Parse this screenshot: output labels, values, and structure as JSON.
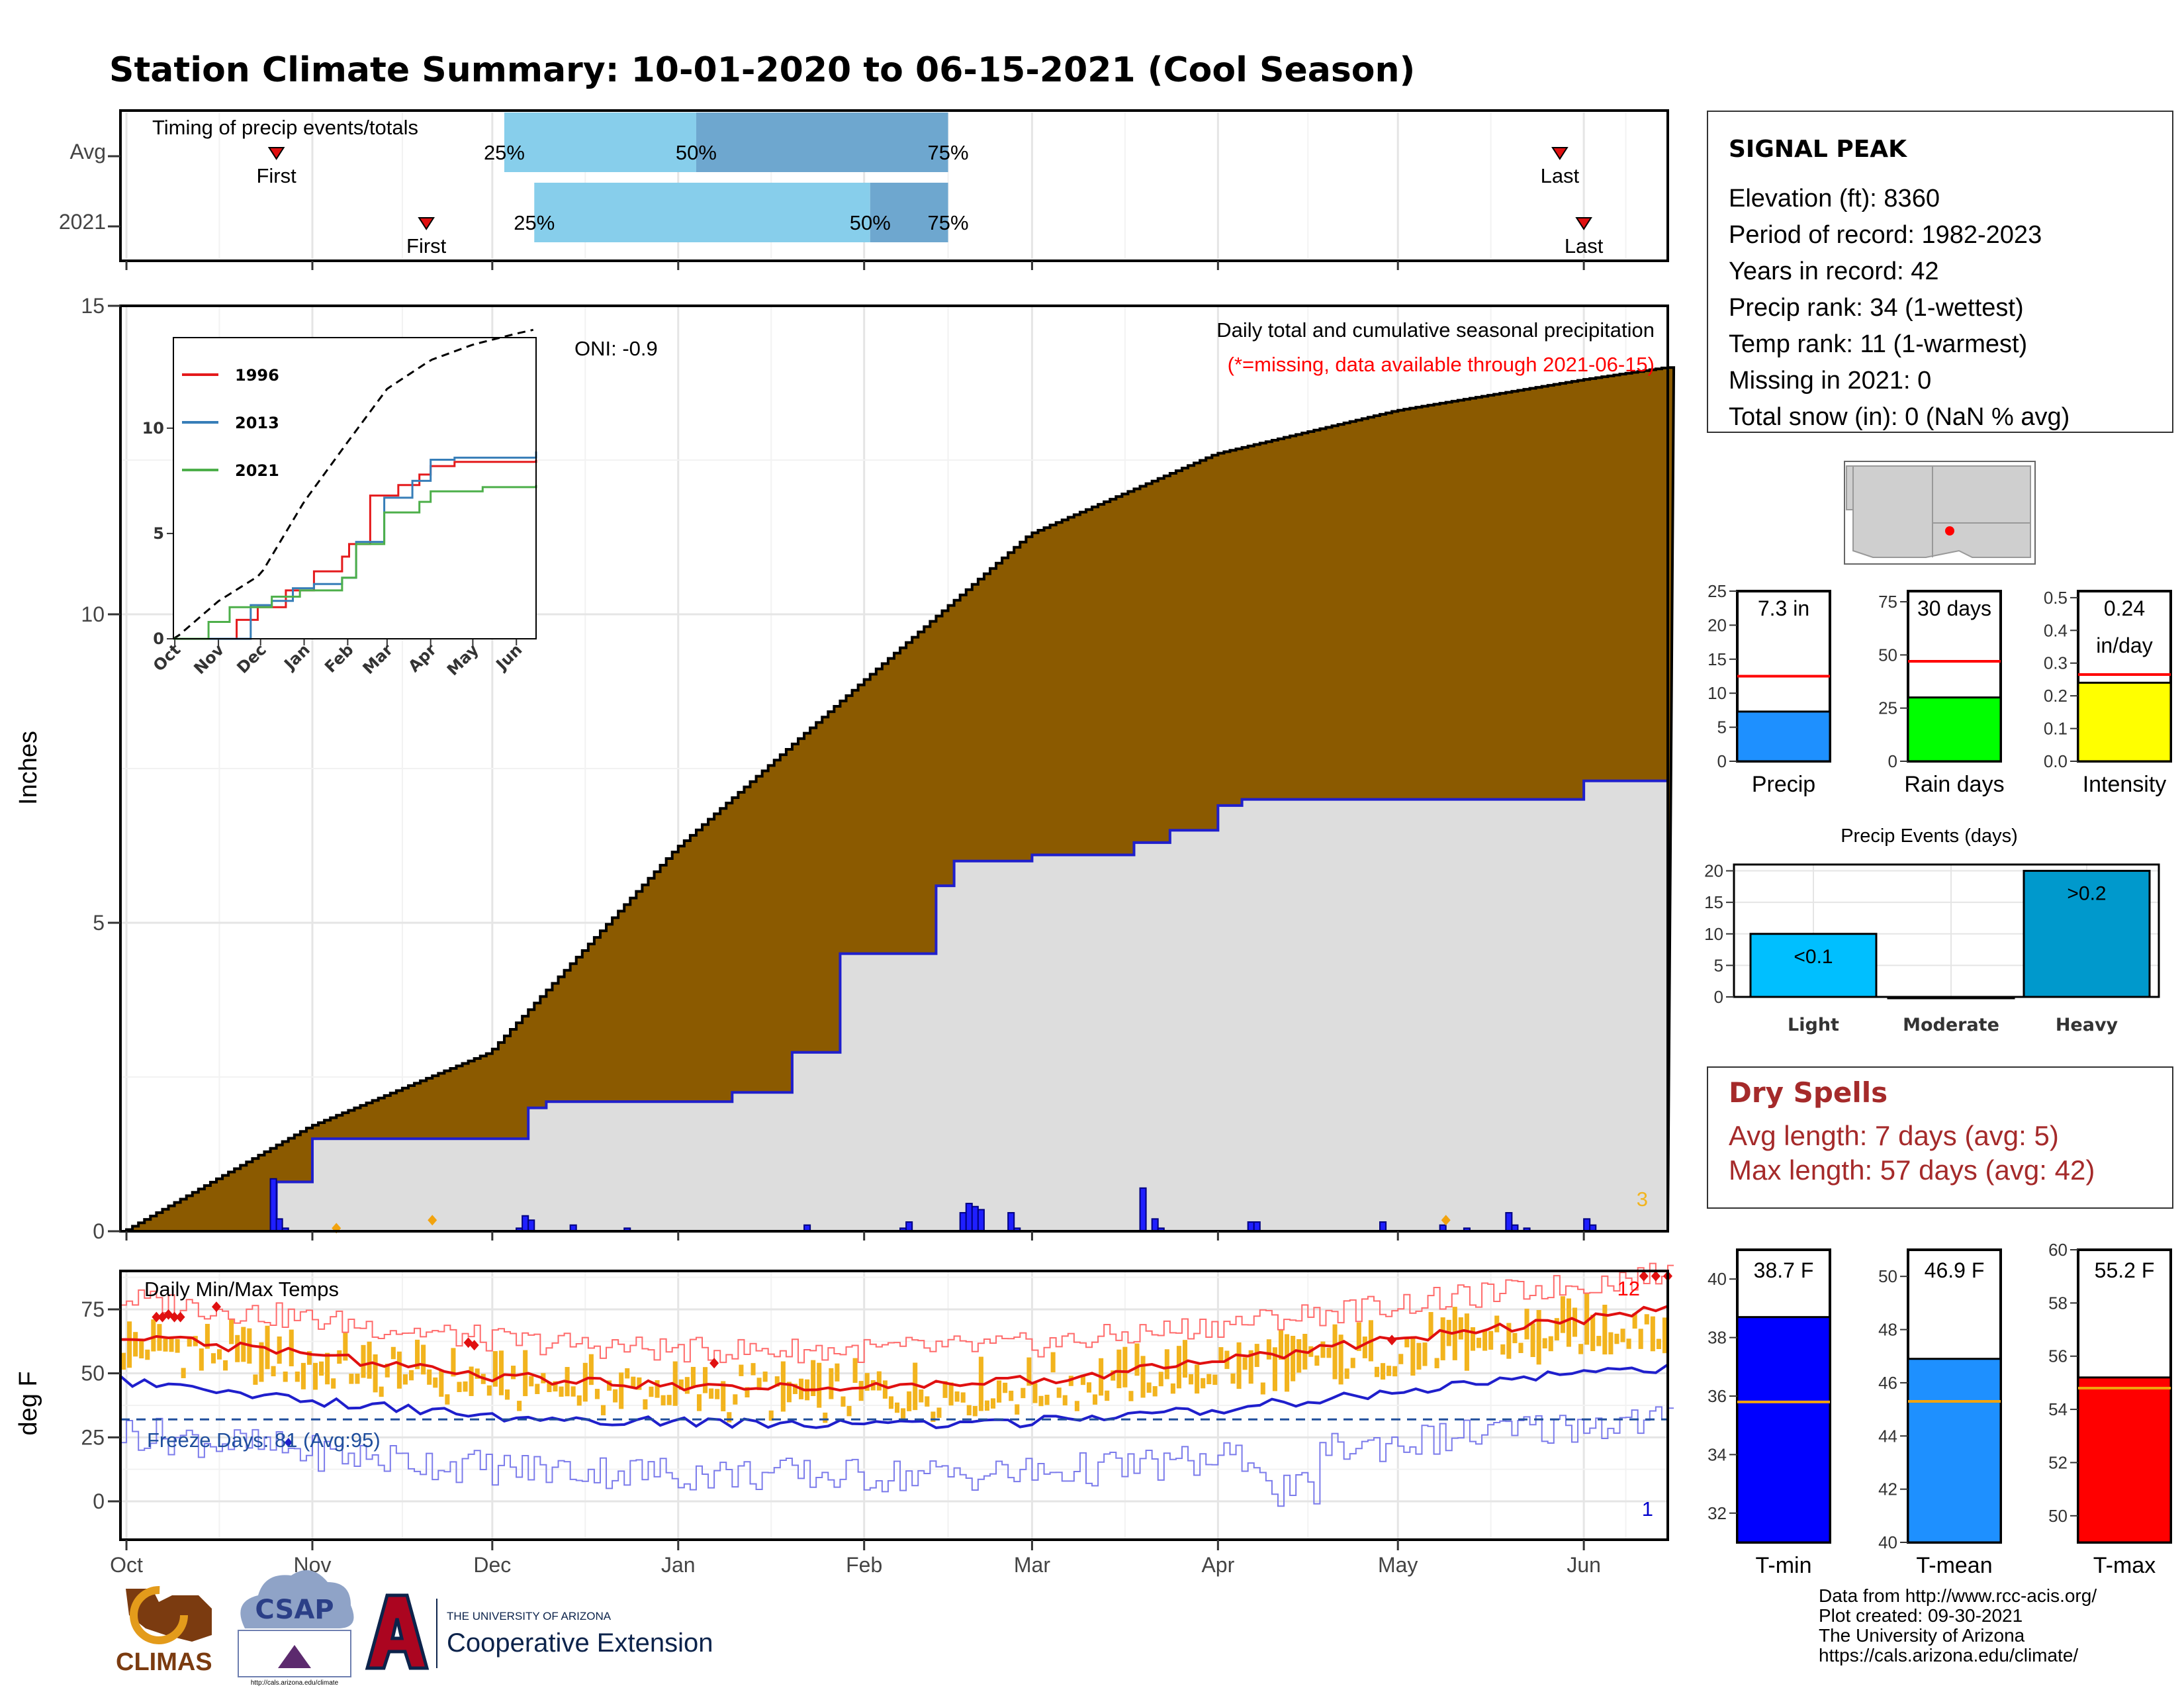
{
  "title": "Station Climate Summary: 10-01-2020 to 06-15-2021 (Cool Season)",
  "colors": {
    "title": "#2B3F87",
    "precip_fill": "#8B5A00",
    "cur_fill": "#DDDDDD",
    "blue": "#1F1FCC",
    "orange": "#F2B41E",
    "red": "#E01010",
    "dry_red": "#A52A2A"
  },
  "timing": {
    "label": "Timing of precip events/totals",
    "rows": [
      {
        "name": "Avg",
        "first_label": "First",
        "last_label": "Last",
        "first": "Oct 26",
        "last": "May 28",
        "q25": "Dec 3",
        "q50": "Jan 4",
        "q75": "Feb 15",
        "pct": [
          "25%",
          "50%",
          "75%"
        ]
      },
      {
        "name": "2021",
        "first_label": "First",
        "last_label": "Last",
        "first": "Nov 20",
        "last": "Jun 1",
        "q25": "Dec 8",
        "q50": "Feb 2",
        "q75": "Feb 15",
        "pct": [
          "25%",
          "50%",
          "75%"
        ]
      }
    ]
  },
  "precip_panel": {
    "ylabel": "Inches",
    "oni": "ONI: -0.9",
    "subtitle": "Daily total and cumulative seasonal precipitation",
    "missing_note": "(*=missing, data available through 2021-06-15)",
    "missing_count": "3",
    "yticks": [
      "0",
      "5",
      "10",
      "15"
    ]
  },
  "inset": {
    "yticks": [
      "0",
      "5",
      "10"
    ],
    "xticks": [
      "Oct",
      "Nov",
      "Dec",
      "Jan",
      "Feb",
      "Mar",
      "Apr",
      "May",
      "Jun"
    ],
    "legend": [
      {
        "name": "1996",
        "color": "#E41A1C"
      },
      {
        "name": "2013",
        "color": "#377EB8"
      },
      {
        "name": "2021",
        "color": "#4DAF4A"
      }
    ]
  },
  "temp_panel": {
    "label": "Daily Min/Max Temps",
    "ylabel": "deg F",
    "freeze": "Freeze Days: 81 (Avg:95)",
    "record_high_count": "12",
    "record_low_count": "1",
    "yticks": [
      "0",
      "25",
      "50",
      "75"
    ]
  },
  "xticks": [
    "Oct",
    "Nov",
    "Dec",
    "Jan",
    "Feb",
    "Mar",
    "Apr",
    "May",
    "Jun"
  ],
  "station": {
    "name": "SIGNAL PEAK",
    "lines": [
      "Elevation (ft): 8360",
      "Period of record: 1982-2023",
      "Years in record: 42",
      "Precip rank: 34 (1-wettest)",
      "Temp rank: 11 (1-warmest)",
      "Missing in 2021: 0",
      "Total snow (in): 0 (NaN % avg)"
    ]
  },
  "small_bars": [
    {
      "name": "Precip",
      "value": 7.3,
      "avg": 12.5,
      "max": 25,
      "ticks": [
        "0",
        "5",
        "10",
        "15",
        "20",
        "25"
      ],
      "label_lines": [
        "7.3 in"
      ],
      "color": "#1E90FF"
    },
    {
      "name": "Rain days",
      "value": 30,
      "avg": 47,
      "max": 80,
      "ticks": [
        "0",
        "25",
        "50",
        "75"
      ],
      "label_lines": [
        "30 days"
      ],
      "color": "#00FF00"
    },
    {
      "name": "Intensity",
      "value": 0.24,
      "avg": 0.265,
      "max": 0.52,
      "ticks": [
        "0.0",
        "0.1",
        "0.2",
        "0.3",
        "0.4",
        "0.5"
      ],
      "label_lines": [
        "0.24",
        "in/day"
      ],
      "color": "#FFFF00"
    }
  ],
  "events": {
    "title": "Precip Events (days)",
    "ticks": [
      "0",
      "5",
      "10",
      "15",
      "20"
    ],
    "bars": [
      {
        "name": "Light",
        "value": 10,
        "label": "<0.1",
        "color": "#00BFFF"
      },
      {
        "name": "Moderate",
        "value": 0,
        "label": "",
        "color": "#1C8FC9"
      },
      {
        "name": "Heavy",
        "value": 20,
        "label": ">0.2",
        "color": "#0099CC"
      }
    ]
  },
  "dry_spells": {
    "title": "Dry Spells",
    "avg": "Avg length: 7 days (avg: 5)",
    "max": "Max length: 57 days (avg: 42)"
  },
  "temp_bars": [
    {
      "name": "T-min",
      "value": 38.7,
      "avg": 35.8,
      "min": 31,
      "max": 41,
      "ticks": [
        "32",
        "34",
        "36",
        "38",
        "40"
      ],
      "label": "38.7 F",
      "color": "#0000FF"
    },
    {
      "name": "T-mean",
      "value": 46.9,
      "avg": 45.3,
      "min": 40,
      "max": 51,
      "ticks": [
        "40",
        "42",
        "44",
        "46",
        "48",
        "50"
      ],
      "label": "46.9 F",
      "color": "#1E90FF"
    },
    {
      "name": "T-max",
      "value": 55.2,
      "avg": 54.8,
      "min": 49,
      "max": 60,
      "ticks": [
        "50",
        "52",
        "54",
        "56",
        "58",
        "60"
      ],
      "label": "55.2 F",
      "color": "#FF0000"
    }
  ],
  "credits": [
    "Data from http://www.rcc-acis.org/",
    "Plot created: 09-30-2021",
    "The University of Arizona",
    "https://cals.arizona.edu/climate/"
  ],
  "logos": {
    "climas": "CLIMAS",
    "csap": "CSAP",
    "ua_small": "THE UNIVERSITY OF ARIZONA",
    "ua_big": "Cooperative Extension",
    "csap_url": "http://cals.arizona.edu/climate"
  },
  "chart_data": [
    {
      "type": "area",
      "title": "Daily total and cumulative seasonal precipitation",
      "ylabel": "Inches",
      "ylim": [
        0,
        15
      ],
      "series": [
        {
          "name": "avg cumulative",
          "x": [
            "Oct 1",
            "Nov 1",
            "Dec 1",
            "Jan 1",
            "Feb 1",
            "Mar 1",
            "Apr 1",
            "May 1",
            "Jun 1",
            "Jun 15"
          ],
          "values": [
            0,
            1.7,
            2.9,
            6.2,
            8.9,
            11.3,
            12.6,
            13.3,
            13.8,
            14.0
          ]
        },
        {
          "name": "2021 cumulative",
          "x": [
            "Oct 1",
            "Oct 26",
            "Nov 1",
            "Dec 7",
            "Dec 10",
            "Jan 10",
            "Jan 20",
            "Jan 28",
            "Feb 13",
            "Feb 16",
            "Mar 1",
            "Mar 18",
            "Mar 24",
            "Apr 1",
            "Apr 5",
            "Jun 1",
            "Jun 15"
          ],
          "values": [
            0,
            0.8,
            1.5,
            2.0,
            2.1,
            2.25,
            2.9,
            4.5,
            5.6,
            6.0,
            6.1,
            6.3,
            6.5,
            6.9,
            7.0,
            7.3,
            7.3
          ]
        }
      ]
    },
    {
      "type": "line",
      "title": "Daily Min/Max Temps",
      "ylabel": "deg F",
      "ylim": [
        -15,
        90
      ],
      "series": [
        {
          "name": "avg max",
          "x": [
            "Oct 1",
            "Nov 1",
            "Dec 1",
            "Jan 1",
            "Feb 1",
            "Mar 1",
            "Apr 1",
            "May 1",
            "Jun 1",
            "Jun 15"
          ],
          "values": [
            65,
            57,
            49,
            45,
            45,
            47,
            55,
            63,
            71,
            75
          ]
        },
        {
          "name": "avg min",
          "x": [
            "Oct 1",
            "Nov 1",
            "Dec 1",
            "Jan 1",
            "Feb 1",
            "Mar 1",
            "Apr 1",
            "May 1",
            "Jun 1",
            "Jun 15"
          ],
          "values": [
            47,
            39,
            33,
            31,
            30,
            31,
            36,
            43,
            50,
            52
          ]
        },
        {
          "name": "freeze line",
          "x": [
            "Oct 1",
            "Jun 15"
          ],
          "values": [
            32,
            32
          ]
        }
      ]
    }
  ]
}
